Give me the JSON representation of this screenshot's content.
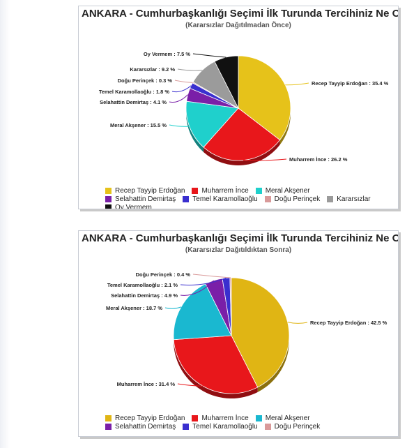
{
  "chart_data": [
    {
      "type": "pie",
      "title": "ANKARA - Cumhurbaşkanlığı Seçimi İlk Turunda Tercihiniz Ne Olur A",
      "subtitle": "(Kararsızlar Dağıtılmadan Önce)",
      "legend_placement": "bottom",
      "slices": [
        {
          "label": "Recep Tayyip Erdoğan : 35.4 %",
          "legend": "Recep Tayyip Erdoğan",
          "value": 35.4,
          "color": "#e6c21a"
        },
        {
          "label": "Muharrem İnce : 26.2 %",
          "legend": "Muharrem İnce",
          "value": 26.2,
          "color": "#e8171b"
        },
        {
          "label": "Meral Akşener : 15.5 %",
          "legend": "Meral Akşener",
          "value": 15.5,
          "color": "#1fd0cc"
        },
        {
          "label": "Selahattin Demirtaş : 4.1 %",
          "legend": "Selahattin Demirtaş",
          "value": 4.1,
          "color": "#7a1fa8"
        },
        {
          "label": "Temel Karamollaoğlu : 1.8 %",
          "legend": "Temel Karamollaoğlu",
          "value": 1.8,
          "color": "#3a2fcf"
        },
        {
          "label": "Doğu Perinçek : 0.3 %",
          "legend": "Doğu Perinçek",
          "value": 0.3,
          "color": "#d99a9a"
        },
        {
          "label": "Kararsızlar : 9.2 %",
          "legend": "Kararsızlar",
          "value": 9.2,
          "color": "#9b9b9b"
        },
        {
          "label": "Oy Vermem : 7.5 %",
          "legend": "Oy Vermem",
          "value": 7.5,
          "color": "#111111"
        }
      ]
    },
    {
      "type": "pie",
      "title": "ANKARA - Cumhurbaşkanlığı Seçimi İlk Turunda Tercihiniz Ne Olur?",
      "subtitle": "(Kararsızlar Dağıtıldıktan Sonra)",
      "legend_placement": "bottom",
      "slices": [
        {
          "label": "Recep Tayyip Erdoğan : 42.5 %",
          "legend": "Recep Tayyip Erdoğan",
          "value": 42.5,
          "color": "#e0b514"
        },
        {
          "label": "Muharrem İnce : 31.4 %",
          "legend": "Muharrem İnce",
          "value": 31.4,
          "color": "#e8171b"
        },
        {
          "label": "Meral Akşener : 18.7 %",
          "legend": "Meral Akşener",
          "value": 18.7,
          "color": "#1ab8d0"
        },
        {
          "label": "Selahattin Demirtaş : 4.9 %",
          "legend": "Selahattin Demirtaş",
          "value": 4.9,
          "color": "#7a1fa8"
        },
        {
          "label": "Temel Karamollaoğlu : 2.1 %",
          "legend": "Temel Karamollaoğlu",
          "value": 2.1,
          "color": "#3a2fcf"
        },
        {
          "label": "Doğu Perinçek : 0.4 %",
          "legend": "Doğu Perinçek",
          "value": 0.4,
          "color": "#d99a9a"
        }
      ]
    }
  ]
}
